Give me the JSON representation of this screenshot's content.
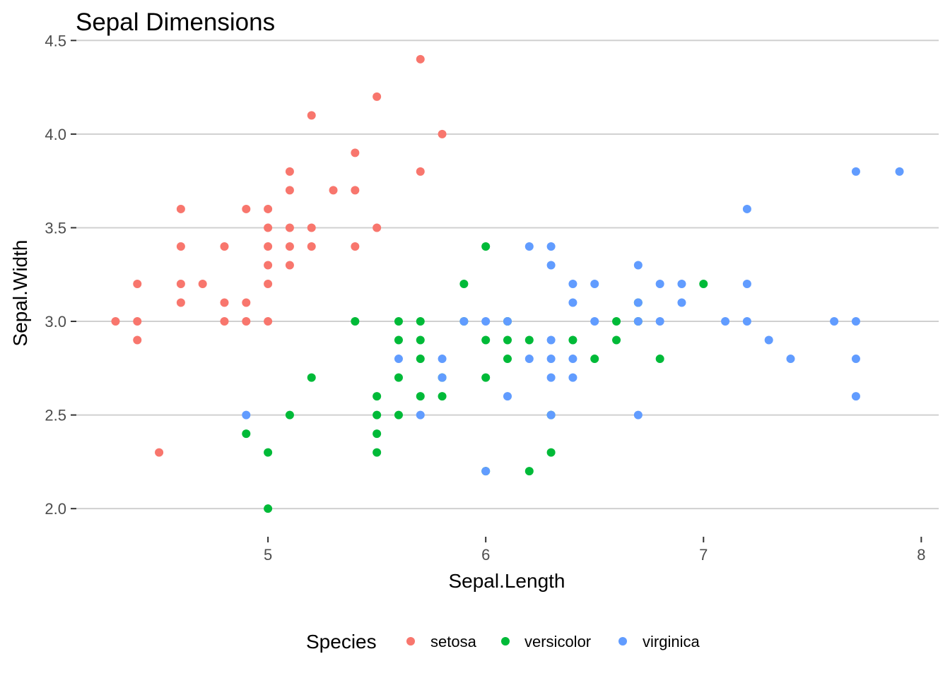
{
  "chart_data": {
    "type": "scatter",
    "title": "Sepal Dimensions",
    "xlabel": "Sepal.Length",
    "ylabel": "Sepal.Width",
    "xlim": [
      4.12,
      8.08
    ],
    "ylim": [
      1.88,
      4.52
    ],
    "xticks": [
      "5",
      "6",
      "7",
      "8"
    ],
    "yticks": [
      "2.0",
      "2.5",
      "3.0",
      "3.5",
      "4.0",
      "4.5"
    ],
    "grid": "horizontal-major",
    "legend": {
      "title": "Species",
      "position": "bottom"
    },
    "series": [
      {
        "name": "setosa",
        "color": "#f8766d",
        "points": [
          [
            4.3,
            3.0
          ],
          [
            4.4,
            3.2
          ],
          [
            4.4,
            3.0
          ],
          [
            4.4,
            2.9
          ],
          [
            4.5,
            2.3
          ],
          [
            4.6,
            3.6
          ],
          [
            4.6,
            3.4
          ],
          [
            4.6,
            3.2
          ],
          [
            4.6,
            3.1
          ],
          [
            4.7,
            3.2
          ],
          [
            4.8,
            3.4
          ],
          [
            4.8,
            3.1
          ],
          [
            4.8,
            3.0
          ],
          [
            4.9,
            3.6
          ],
          [
            4.9,
            3.1
          ],
          [
            4.9,
            3.0
          ],
          [
            5.0,
            3.6
          ],
          [
            5.0,
            3.5
          ],
          [
            5.0,
            3.4
          ],
          [
            5.0,
            3.3
          ],
          [
            5.0,
            3.2
          ],
          [
            5.0,
            3.0
          ],
          [
            5.1,
            3.8
          ],
          [
            5.1,
            3.7
          ],
          [
            5.1,
            3.5
          ],
          [
            5.1,
            3.4
          ],
          [
            5.1,
            3.3
          ],
          [
            5.2,
            4.1
          ],
          [
            5.2,
            3.5
          ],
          [
            5.2,
            3.4
          ],
          [
            5.3,
            3.7
          ],
          [
            5.4,
            3.9
          ],
          [
            5.4,
            3.7
          ],
          [
            5.4,
            3.4
          ],
          [
            5.5,
            4.2
          ],
          [
            5.5,
            3.5
          ],
          [
            5.7,
            4.4
          ],
          [
            5.7,
            3.8
          ],
          [
            5.8,
            4.0
          ]
        ]
      },
      {
        "name": "versicolor",
        "color": "#00ba38",
        "points": [
          [
            4.9,
            2.4
          ],
          [
            5.0,
            2.3
          ],
          [
            5.0,
            2.0
          ],
          [
            5.1,
            2.5
          ],
          [
            5.2,
            2.7
          ],
          [
            5.4,
            3.0
          ],
          [
            5.5,
            2.6
          ],
          [
            5.5,
            2.5
          ],
          [
            5.5,
            2.4
          ],
          [
            5.5,
            2.3
          ],
          [
            5.6,
            3.0
          ],
          [
            5.6,
            2.9
          ],
          [
            5.6,
            2.7
          ],
          [
            5.6,
            2.5
          ],
          [
            5.7,
            3.0
          ],
          [
            5.7,
            2.9
          ],
          [
            5.7,
            2.8
          ],
          [
            5.7,
            2.6
          ],
          [
            5.8,
            2.7
          ],
          [
            5.8,
            2.6
          ],
          [
            5.9,
            3.2
          ],
          [
            5.9,
            3.0
          ],
          [
            6.0,
            3.4
          ],
          [
            6.0,
            2.9
          ],
          [
            6.0,
            2.7
          ],
          [
            6.0,
            2.2
          ],
          [
            6.1,
            3.0
          ],
          [
            6.1,
            2.9
          ],
          [
            6.1,
            2.8
          ],
          [
            6.2,
            2.9
          ],
          [
            6.2,
            2.2
          ],
          [
            6.3,
            2.5
          ],
          [
            6.3,
            2.3
          ],
          [
            6.4,
            2.9
          ],
          [
            6.5,
            2.8
          ],
          [
            6.6,
            3.0
          ],
          [
            6.6,
            2.9
          ],
          [
            6.7,
            3.1
          ],
          [
            6.7,
            3.0
          ],
          [
            6.8,
            2.8
          ],
          [
            7.0,
            3.2
          ]
        ]
      },
      {
        "name": "virginica",
        "color": "#619cff",
        "points": [
          [
            4.9,
            2.5
          ],
          [
            5.6,
            2.8
          ],
          [
            5.7,
            2.5
          ],
          [
            5.8,
            2.8
          ],
          [
            5.8,
            2.7
          ],
          [
            5.9,
            3.0
          ],
          [
            6.0,
            3.0
          ],
          [
            6.0,
            2.2
          ],
          [
            6.1,
            3.0
          ],
          [
            6.1,
            2.6
          ],
          [
            6.2,
            3.4
          ],
          [
            6.2,
            2.8
          ],
          [
            6.3,
            3.4
          ],
          [
            6.3,
            3.3
          ],
          [
            6.3,
            2.9
          ],
          [
            6.3,
            2.8
          ],
          [
            6.3,
            2.7
          ],
          [
            6.3,
            2.5
          ],
          [
            6.4,
            3.2
          ],
          [
            6.4,
            3.1
          ],
          [
            6.4,
            2.8
          ],
          [
            6.4,
            2.7
          ],
          [
            6.5,
            3.2
          ],
          [
            6.5,
            3.0
          ],
          [
            6.7,
            3.3
          ],
          [
            6.7,
            3.1
          ],
          [
            6.7,
            3.0
          ],
          [
            6.7,
            2.5
          ],
          [
            6.8,
            3.2
          ],
          [
            6.8,
            3.0
          ],
          [
            6.9,
            3.2
          ],
          [
            6.9,
            3.1
          ],
          [
            7.1,
            3.0
          ],
          [
            7.2,
            3.6
          ],
          [
            7.2,
            3.2
          ],
          [
            7.2,
            3.0
          ],
          [
            7.3,
            2.9
          ],
          [
            7.4,
            2.8
          ],
          [
            7.6,
            3.0
          ],
          [
            7.7,
            3.8
          ],
          [
            7.7,
            3.0
          ],
          [
            7.7,
            2.8
          ],
          [
            7.7,
            2.6
          ],
          [
            7.9,
            3.8
          ]
        ]
      }
    ]
  }
}
